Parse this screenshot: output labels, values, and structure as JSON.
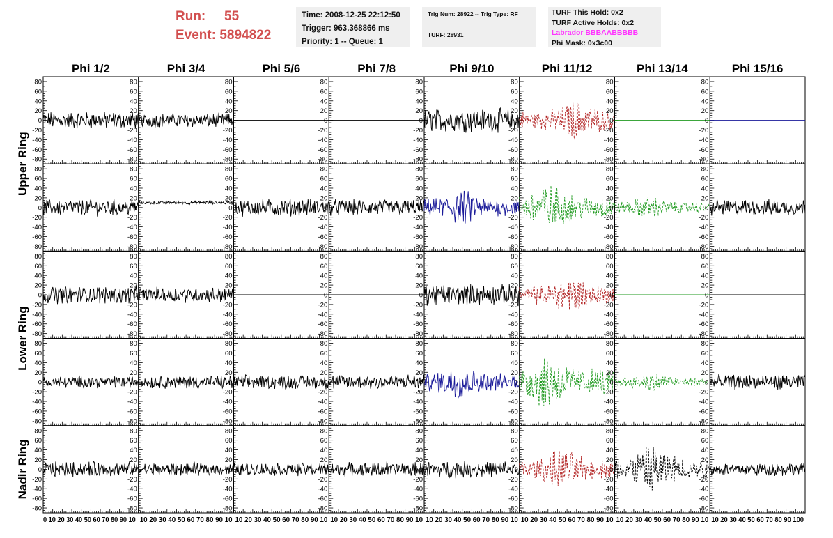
{
  "header": {
    "run_label": "Run:",
    "run_value": "55",
    "event_label": "Event:",
    "event_value": "5894822"
  },
  "box_time": {
    "time": "Time: 2008-12-25 22:12:50",
    "trigger": "Trigger: 963.368866 ms",
    "priority": "Priority: 1 -- Queue: 1"
  },
  "box_trig": {
    "trig": "Trig Num: 28922 -- Trig Type: RF",
    "turf": "TURF: 28931"
  },
  "box_turf": {
    "this_hold": "TURF This Hold: 0x2",
    "active_holds": "TURF Active Holds: 0x2",
    "labrador": "Labrador BBBAABBBBB",
    "phi_mask": "Phi Mask: 0x3c00"
  },
  "colors": {
    "header_red": "#d24f4f",
    "labrador_magenta": "#ff33ff",
    "box_bg": "#efefef",
    "trace_black": "#000000",
    "trace_red": "#b22222",
    "trace_green": "#1f9a1f",
    "trace_blue": "#1a1a99"
  },
  "chart_data": {
    "type": "line",
    "columns": [
      "Phi 1/2",
      "Phi 3/4",
      "Phi 5/6",
      "Phi 7/8",
      "Phi 9/10",
      "Phi 11/12",
      "Phi 13/14",
      "Phi 15/16"
    ],
    "rows": [
      "Upper Ring",
      "Upper Ring",
      "Lower Ring",
      "Lower Ring",
      "Nadir Ring"
    ],
    "row_titles": [
      {
        "label": "Upper Ring",
        "spans": [
          0,
          1
        ]
      },
      {
        "label": "Lower Ring",
        "spans": [
          2,
          3
        ]
      },
      {
        "label": "Nadir Ring",
        "spans": [
          4,
          4
        ]
      }
    ],
    "xlim": [
      0,
      100
    ],
    "ylim": [
      -90,
      90
    ],
    "y_ticks": [
      -80,
      -60,
      -40,
      -20,
      0,
      20,
      40,
      60,
      80
    ],
    "x_tick_labels": [
      "0",
      "10",
      "20",
      "30",
      "40",
      "50",
      "60",
      "70",
      "80",
      "90",
      "100"
    ],
    "x_axis_label_strings": [
      "0 10 20 30 40 50 60 70 80 90 10",
      "10 20 30 40 50 60 70 80 90 10",
      "10 20 30 40 50 60 70 80 90 10",
      "10 20 30 40 50 60 70 80 90 10",
      "10 20 30 40 50 60 70 80 90 10",
      "10 20 30 40 50 60 70 80 90 10",
      "10 20 30 40 50 60 70 80 90 10",
      "10 20 30 40 50 60 70 80 90 100"
    ],
    "panels": [
      [
        {
          "amp": 15,
          "color": "black",
          "dash": false
        },
        {
          "amp": 12,
          "color": "black",
          "dash": false
        },
        {
          "amp": 0,
          "color": "black",
          "dash": false
        },
        {
          "amp": 0,
          "color": "black",
          "dash": false
        },
        {
          "amp": 20,
          "color": "black",
          "dash": false
        },
        {
          "amp": 25,
          "color": "red",
          "dash": true,
          "peak": 60
        },
        {
          "amp": 0,
          "color": "green",
          "dash": false
        },
        {
          "amp": 0,
          "color": "blue",
          "dash": false
        }
      ],
      [
        {
          "amp": 14,
          "color": "black",
          "dash": false
        },
        {
          "amp": 3,
          "color": "black",
          "dash": false
        },
        {
          "amp": 15,
          "color": "black",
          "dash": false
        },
        {
          "amp": 14,
          "color": "black",
          "dash": false
        },
        {
          "amp": 22,
          "color": "blue",
          "dash": false,
          "peak": 40
        },
        {
          "amp": 30,
          "color": "green",
          "dash": true,
          "peak": 30
        },
        {
          "amp": 14,
          "color": "green",
          "dash": true,
          "peak": 35
        },
        {
          "amp": 14,
          "color": "black",
          "dash": false
        }
      ],
      [
        {
          "amp": 15,
          "color": "black",
          "dash": false
        },
        {
          "amp": 13,
          "color": "black",
          "dash": false
        },
        {
          "amp": 0,
          "color": "black",
          "dash": false
        },
        {
          "amp": 0,
          "color": "black",
          "dash": false
        },
        {
          "amp": 18,
          "color": "black",
          "dash": false
        },
        {
          "amp": 24,
          "color": "red",
          "dash": true,
          "peak": 55
        },
        {
          "amp": 0,
          "color": "green",
          "dash": false
        },
        {
          "amp": 0,
          "color": "black",
          "dash": false
        }
      ],
      [
        {
          "amp": 10,
          "color": "black",
          "dash": false
        },
        {
          "amp": 11,
          "color": "black",
          "dash": false
        },
        {
          "amp": 12,
          "color": "black",
          "dash": false
        },
        {
          "amp": 13,
          "color": "black",
          "dash": false
        },
        {
          "amp": 22,
          "color": "blue",
          "dash": false,
          "peak": 35
        },
        {
          "amp": 35,
          "color": "green",
          "dash": true,
          "peak": 30
        },
        {
          "amp": 12,
          "color": "green",
          "dash": true,
          "peak": 40
        },
        {
          "amp": 13,
          "color": "black",
          "dash": false
        }
      ],
      [
        {
          "amp": 13,
          "color": "black",
          "dash": false
        },
        {
          "amp": 11,
          "color": "black",
          "dash": false
        },
        {
          "amp": 11,
          "color": "black",
          "dash": false
        },
        {
          "amp": 12,
          "color": "black",
          "dash": false
        },
        {
          "amp": 14,
          "color": "black",
          "dash": false
        },
        {
          "amp": 25,
          "color": "red",
          "dash": true,
          "peak": 45
        },
        {
          "amp": 30,
          "color": "black",
          "dash": true,
          "peak": 40
        },
        {
          "amp": 11,
          "color": "black",
          "dash": false
        }
      ]
    ]
  }
}
